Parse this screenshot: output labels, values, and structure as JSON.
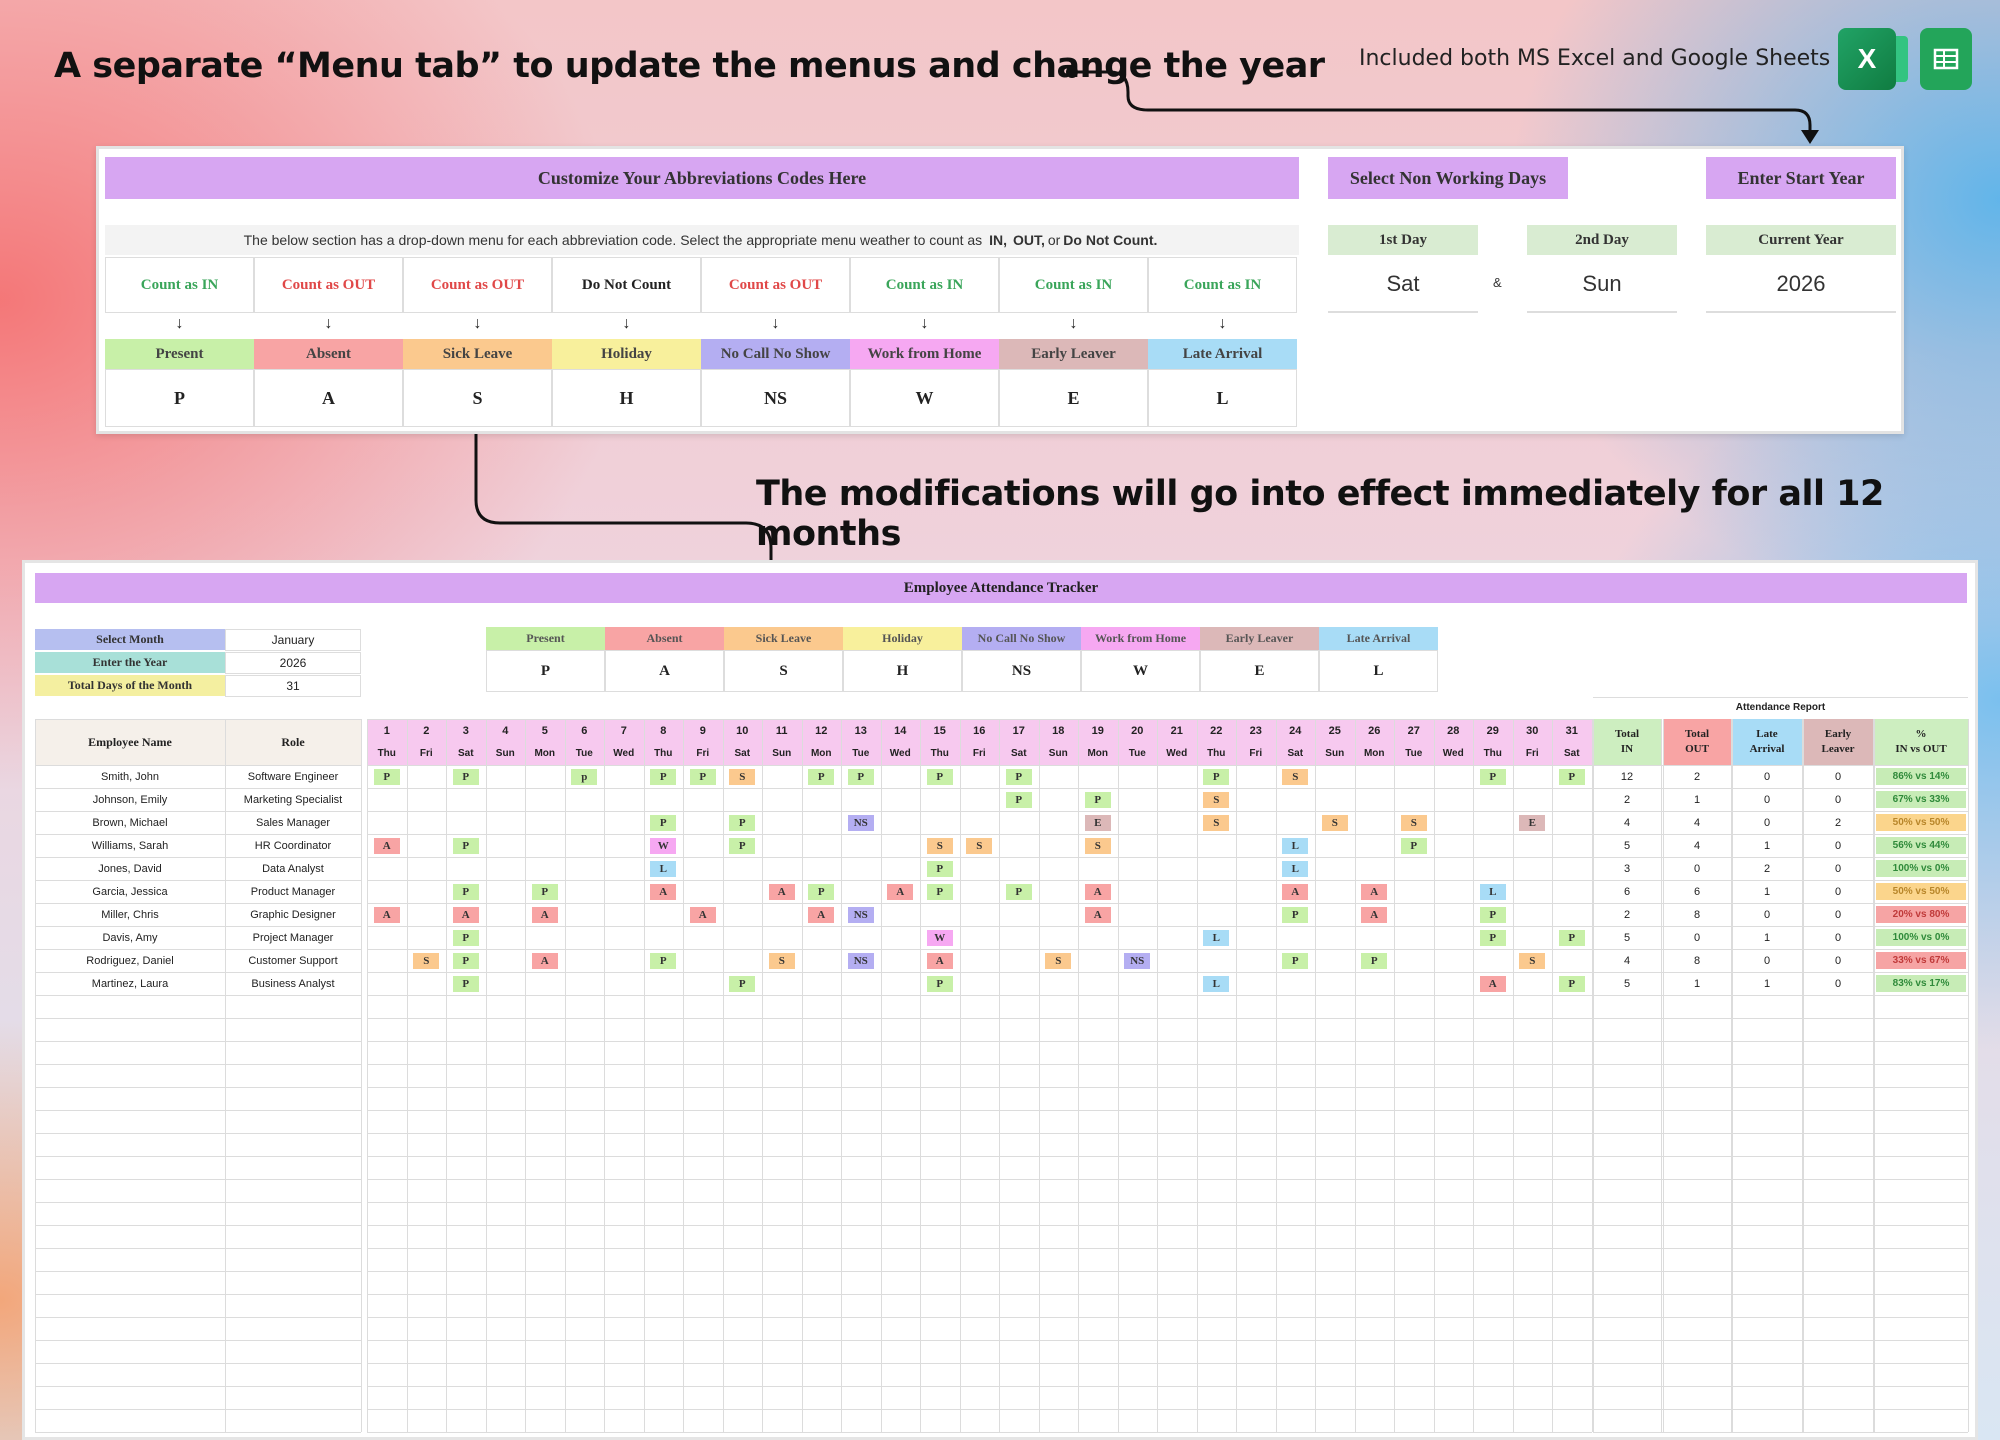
{
  "headline_menu": "A separate “Menu tab” to update the menus and change the year",
  "headline_modifications": "The modifications will go into effect immediately for all 12 months",
  "tagline": "Included both MS Excel and Google Sheets",
  "icons": {
    "excel": "excel-icon",
    "sheets": "google-sheets-icon",
    "excel_letter": "X"
  },
  "menu": {
    "abbr_title": "Customize Your Abbreviations Codes Here",
    "nonworking_title": "Select Non Working Days",
    "year_title": "Enter Start Year",
    "info_pre": "The below section has a drop-down menu for each abbreviation code. Select the appropriate menu weather to count as",
    "info_in": "IN,",
    "info_out": "OUT,",
    "info_or": "or",
    "info_dnc": "Do Not Count.",
    "arrow_glyph": "↓",
    "codes": [
      {
        "count": "Count as IN",
        "count_color": "#3aa55a",
        "label": "Present",
        "bg": "#c8f0a8",
        "code": "P"
      },
      {
        "count": "Count as OUT",
        "count_color": "#e04848",
        "label": "Absent",
        "bg": "#f8a4a4",
        "code": "A"
      },
      {
        "count": "Count as OUT",
        "count_color": "#e04848",
        "label": "Sick Leave",
        "bg": "#fbc98e",
        "code": "S"
      },
      {
        "count": "Do Not Count",
        "count_color": "#222222",
        "label": "Holiday",
        "bg": "#f8f09c",
        "code": "H"
      },
      {
        "count": "Count as OUT",
        "count_color": "#e04848",
        "label": "No Call No Show",
        "bg": "#b4aef2",
        "code": "NS"
      },
      {
        "count": "Count as IN",
        "count_color": "#3aa55a",
        "label": "Work from Home",
        "bg": "#f6a8f2",
        "code": "W"
      },
      {
        "count": "Count as IN",
        "count_color": "#3aa55a",
        "label": "Early Leaver",
        "bg": "#dcb8b8",
        "code": "E"
      },
      {
        "count": "Count as IN",
        "count_color": "#3aa55a",
        "label": "Late Arrival",
        "bg": "#a8dcf6",
        "code": "L"
      }
    ],
    "first_day_label": "1st Day",
    "second_day_label": "2nd Day",
    "current_year_label": "Current Year",
    "first_day": "Sat",
    "second_day": "Sun",
    "amp": "&",
    "current_year": "2026"
  },
  "tracker": {
    "title": "Employee Attendance Tracker",
    "select_month_label": "Select Month",
    "select_month": "January",
    "enter_year_label": "Enter the Year",
    "enter_year": "2026",
    "total_days_label": "Total Days of the Month",
    "total_days": "31",
    "employee_name_header": "Employee Name",
    "role_header": "Role",
    "report_title": "Attendance Report",
    "report_headers": [
      {
        "top": "Total",
        "bottom": "IN",
        "bg": "#cdeec0"
      },
      {
        "top": "Total",
        "bottom": "OUT",
        "bg": "#f8a4a4"
      },
      {
        "top": "Late",
        "bottom": "Arrival",
        "bg": "#a8dcf6"
      },
      {
        "top": "Early",
        "bottom": "Leaver",
        "bg": "#dcb8b8"
      },
      {
        "top": "%",
        "bottom": "IN vs OUT",
        "bg": "#cdeec0"
      }
    ],
    "days": [
      "1",
      "2",
      "3",
      "4",
      "5",
      "6",
      "7",
      "8",
      "9",
      "10",
      "11",
      "12",
      "13",
      "14",
      "15",
      "16",
      "17",
      "18",
      "19",
      "20",
      "21",
      "22",
      "23",
      "24",
      "25",
      "26",
      "27",
      "28",
      "29",
      "30",
      "31"
    ],
    "weekdays": [
      "Thu",
      "Fri",
      "Sat",
      "Sun",
      "Mon",
      "Tue",
      "Wed",
      "Thu",
      "Fri",
      "Sat",
      "Sun",
      "Mon",
      "Tue",
      "Wed",
      "Thu",
      "Fri",
      "Sat",
      "Sun",
      "Mon",
      "Tue",
      "Wed",
      "Thu",
      "Fri",
      "Sat",
      "Sun",
      "Mon",
      "Tue",
      "Wed",
      "Thu",
      "Fri",
      "Sat"
    ],
    "employees": [
      {
        "name": "Smith, John",
        "role": "Software Engineer",
        "marks": {
          "1": "P",
          "3": "P",
          "6": "p",
          "8": "P",
          "9": "P",
          "10": "S",
          "12": "P",
          "13": "P",
          "15": "P",
          "17": "P",
          "22": "P",
          "24": "S",
          "29": "P",
          "31": "P"
        },
        "total_in": "12",
        "total_out": "2",
        "late": "0",
        "early": "0",
        "pct": "86% vs 14%",
        "pct_bg": "#c7ecb6",
        "pct_color": "#2f8a3a"
      },
      {
        "name": "Johnson, Emily",
        "role": "Marketing Specialist",
        "marks": {
          "17": "P",
          "19": "P",
          "22": "S"
        },
        "total_in": "2",
        "total_out": "1",
        "late": "0",
        "early": "0",
        "pct": "67% vs 33%",
        "pct_bg": "#c7ecb6",
        "pct_color": "#2f8a3a"
      },
      {
        "name": "Brown, Michael",
        "role": "Sales Manager",
        "marks": {
          "8": "P",
          "10": "P",
          "13": "NS",
          "19": "E",
          "22": "S",
          "25": "S",
          "27": "S",
          "30": "E"
        },
        "total_in": "4",
        "total_out": "4",
        "late": "0",
        "early": "2",
        "pct": "50% vs 50%",
        "pct_bg": "#fbd58c",
        "pct_color": "#b8862a"
      },
      {
        "name": "Williams, Sarah",
        "role": "HR Coordinator",
        "marks": {
          "1": "A",
          "3": "P",
          "8": "W",
          "10": "P",
          "15": "S",
          "16": "S",
          "19": "S",
          "24": "L",
          "27": "P"
        },
        "total_in": "5",
        "total_out": "4",
        "late": "1",
        "early": "0",
        "pct": "56% vs 44%",
        "pct_bg": "#c7ecb6",
        "pct_color": "#2f8a3a"
      },
      {
        "name": "Jones, David",
        "role": "Data Analyst",
        "marks": {
          "8": "L",
          "15": "P",
          "24": "L"
        },
        "total_in": "3",
        "total_out": "0",
        "late": "2",
        "early": "0",
        "pct": "100% vs 0%",
        "pct_bg": "#c7ecb6",
        "pct_color": "#2f8a3a"
      },
      {
        "name": "Garcia, Jessica",
        "role": "Product Manager",
        "marks": {
          "3": "P",
          "5": "P",
          "8": "A",
          "11": "A",
          "12": "P",
          "14": "A",
          "15": "P",
          "17": "P",
          "19": "A",
          "24": "A",
          "26": "A",
          "29": "L"
        },
        "total_in": "6",
        "total_out": "6",
        "late": "1",
        "early": "0",
        "pct": "50% vs 50%",
        "pct_bg": "#fbd58c",
        "pct_color": "#b8862a"
      },
      {
        "name": "Miller, Chris",
        "role": "Graphic Designer",
        "marks": {
          "1": "A",
          "3": "A",
          "5": "A",
          "9": "A",
          "12": "A",
          "13": "NS",
          "19": "A",
          "24": "P",
          "26": "A",
          "29": "P"
        },
        "total_in": "2",
        "total_out": "8",
        "late": "0",
        "early": "0",
        "pct": "20% vs 80%",
        "pct_bg": "#f6a4a4",
        "pct_color": "#c03a3a"
      },
      {
        "name": "Davis, Amy",
        "role": "Project Manager",
        "marks": {
          "3": "P",
          "15": "W",
          "22": "L",
          "29": "P",
          "31": "P"
        },
        "total_in": "5",
        "total_out": "0",
        "late": "1",
        "early": "0",
        "pct": "100% vs 0%",
        "pct_bg": "#c7ecb6",
        "pct_color": "#2f8a3a"
      },
      {
        "name": "Rodriguez, Daniel",
        "role": "Customer Support",
        "marks": {
          "2": "S",
          "3": "P",
          "5": "A",
          "8": "P",
          "11": "S",
          "13": "NS",
          "15": "A",
          "18": "S",
          "20": "NS",
          "24": "P",
          "26": "P",
          "30": "S"
        },
        "total_in": "4",
        "total_out": "8",
        "late": "0",
        "early": "0",
        "pct": "33% vs 67%",
        "pct_bg": "#f6a4a4",
        "pct_color": "#c03a3a"
      },
      {
        "name": "Martinez, Laura",
        "role": "Business Analyst",
        "marks": {
          "3": "P",
          "10": "P",
          "15": "P",
          "22": "L",
          "29": "A",
          "31": "P"
        },
        "total_in": "5",
        "total_out": "1",
        "late": "1",
        "early": "0",
        "pct": "83% vs 17%",
        "pct_bg": "#c7ecb6",
        "pct_color": "#2f8a3a"
      }
    ]
  },
  "colors": {
    "menu_bar": "#d7a6f2",
    "select_month_bg": "#b6bff0",
    "enter_year_bg": "#a8e0d8",
    "total_days_bg": "#f4efa0",
    "day_header_bg": "#f7c9ef",
    "name_header_bg": "#f5f0ea"
  }
}
